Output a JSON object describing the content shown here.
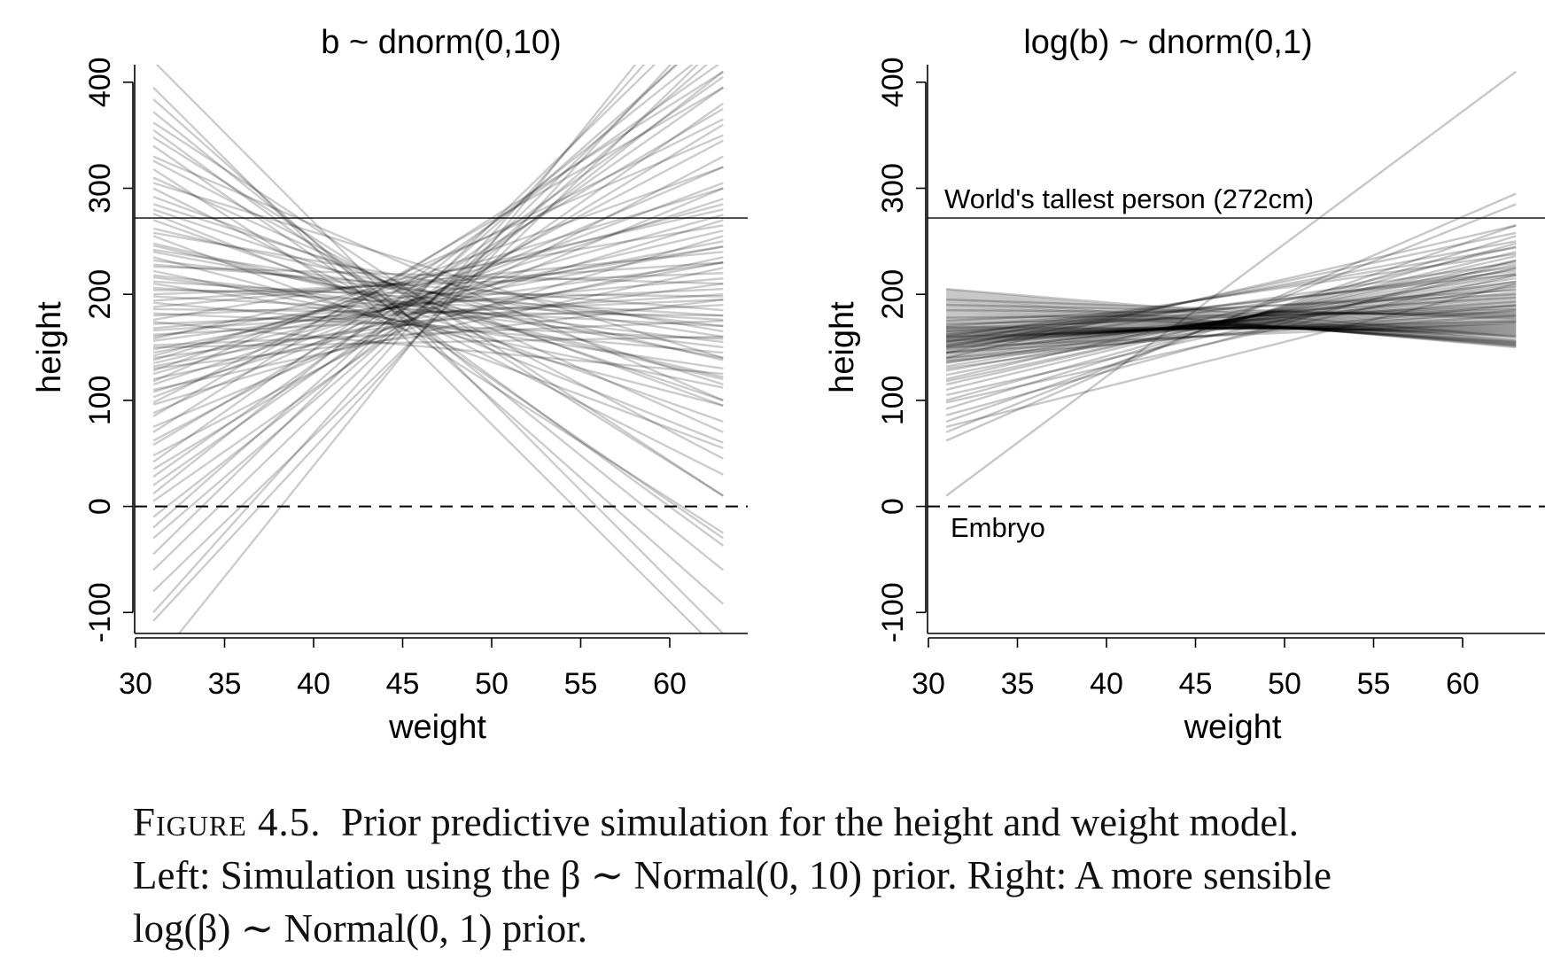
{
  "chart_data": [
    {
      "type": "line",
      "title": "b ~ dnorm(0,10)",
      "xlabel": "weight",
      "ylabel": "height",
      "xlim": [
        30,
        63
      ],
      "ylim": [
        -120,
        420
      ],
      "xticks": [
        "30",
        "35",
        "40",
        "45",
        "50",
        "55",
        "60"
      ],
      "yticks": [
        "-100",
        "0",
        "100",
        "200",
        "300",
        "400"
      ],
      "x": [
        31,
        63
      ],
      "series_color": "#000000",
      "series_opacity": 0.2,
      "series": [
        {
          "values": [
            420,
            -120
          ]
        },
        {
          "values": [
            384,
            -92
          ]
        },
        {
          "values": [
            355,
            -37
          ]
        },
        {
          "values": [
            340,
            -30
          ]
        },
        {
          "values": [
            330,
            100
          ]
        },
        {
          "values": [
            318,
            -25
          ]
        },
        {
          "values": [
            300,
            30
          ]
        },
        {
          "values": [
            285,
            115
          ]
        },
        {
          "values": [
            270,
            80
          ]
        },
        {
          "values": [
            262,
            138
          ]
        },
        {
          "values": [
            255,
            55
          ]
        },
        {
          "values": [
            248,
            122
          ]
        },
        {
          "values": [
            242,
            160
          ]
        },
        {
          "values": [
            235,
            95
          ]
        },
        {
          "values": [
            228,
            185
          ]
        },
        {
          "values": [
            222,
            112
          ]
        },
        {
          "values": [
            216,
            150
          ]
        },
        {
          "values": [
            210,
            130
          ]
        },
        {
          "values": [
            204,
            198
          ]
        },
        {
          "values": [
            198,
            170
          ]
        },
        {
          "values": [
            192,
            145
          ]
        },
        {
          "values": [
            186,
            180
          ]
        },
        {
          "values": [
            180,
            205
          ]
        },
        {
          "values": [
            174,
            125
          ]
        },
        {
          "values": [
            168,
            215
          ]
        },
        {
          "values": [
            162,
            190
          ]
        },
        {
          "values": [
            156,
            230
          ]
        },
        {
          "values": [
            150,
            160
          ]
        },
        {
          "values": [
            145,
            245
          ]
        },
        {
          "values": [
            140,
            210
          ]
        },
        {
          "values": [
            135,
            260
          ]
        },
        {
          "values": [
            130,
            195
          ]
        },
        {
          "values": [
            125,
            275
          ]
        },
        {
          "values": [
            120,
            235
          ]
        },
        {
          "values": [
            115,
            290
          ]
        },
        {
          "values": [
            110,
            225
          ]
        },
        {
          "values": [
            103,
            305
          ]
        },
        {
          "values": [
            96,
            255
          ]
        },
        {
          "values": [
            88,
            320
          ]
        },
        {
          "values": [
            75,
            300
          ]
        },
        {
          "values": [
            62,
            345
          ]
        },
        {
          "values": [
            48,
            330
          ]
        },
        {
          "values": [
            35,
            360
          ]
        },
        {
          "values": [
            20,
            395
          ]
        },
        {
          "values": [
            5,
            380
          ]
        },
        {
          "values": [
            -10,
            410
          ]
        },
        {
          "values": [
            -30,
            430
          ]
        },
        {
          "values": [
            -60,
            460
          ]
        },
        {
          "values": [
            -80,
            440
          ]
        },
        {
          "values": [
            -100,
            500
          ]
        },
        {
          "values": [
            -108,
            470
          ]
        },
        {
          "values": [
            -150,
            520
          ]
        },
        {
          "values": [
            395,
            -140
          ]
        },
        {
          "values": [
            372,
            -60
          ]
        },
        {
          "values": [
            362,
            10
          ]
        },
        {
          "values": [
            310,
            70
          ]
        },
        {
          "values": [
            292,
            95
          ]
        },
        {
          "values": [
            276,
            60
          ]
        },
        {
          "values": [
            240,
            140
          ]
        },
        {
          "values": [
            232,
            170
          ]
        },
        {
          "values": [
            212,
            180
          ]
        },
        {
          "values": [
            200,
            220
          ]
        },
        {
          "values": [
            188,
            240
          ]
        },
        {
          "values": [
            176,
            265
          ]
        },
        {
          "values": [
            166,
            200
          ]
        },
        {
          "values": [
            158,
            280
          ]
        },
        {
          "values": [
            148,
            250
          ]
        },
        {
          "values": [
            138,
            300
          ]
        },
        {
          "values": [
            128,
            320
          ]
        },
        {
          "values": [
            118,
            350
          ]
        },
        {
          "values": [
            108,
            270
          ]
        },
        {
          "values": [
            98,
            365
          ]
        },
        {
          "values": [
            85,
            395
          ]
        },
        {
          "values": [
            70,
            410
          ]
        },
        {
          "values": [
            58,
            375
          ]
        },
        {
          "values": [
            42,
            420
          ]
        },
        {
          "values": [
            28,
            405
          ]
        },
        {
          "values": [
            12,
            440
          ]
        },
        {
          "values": [
            -20,
            455
          ]
        },
        {
          "values": [
            -45,
            480
          ]
        },
        {
          "values": [
            348,
            10
          ]
        },
        {
          "values": [
            326,
            45
          ]
        },
        {
          "values": [
            305,
            140
          ]
        },
        {
          "values": [
            280,
            100
          ]
        },
        {
          "values": [
            258,
            165
          ]
        },
        {
          "values": [
            246,
            120
          ]
        },
        {
          "values": [
            226,
            210
          ]
        },
        {
          "values": [
            218,
            155
          ]
        },
        {
          "values": [
            206,
            176
          ]
        },
        {
          "values": [
            194,
            230
          ]
        },
        {
          "values": [
            182,
            158
          ]
        },
        {
          "values": [
            172,
            195
          ]
        },
        {
          "values": [
            160,
            245
          ]
        },
        {
          "values": [
            152,
            175
          ]
        },
        {
          "values": [
            142,
            285
          ]
        },
        {
          "values": [
            132,
            230
          ]
        }
      ]
    },
    {
      "type": "line",
      "title": "log(b) ~ dnorm(0,1)",
      "xlabel": "weight",
      "ylabel": "height",
      "xlim": [
        30,
        63
      ],
      "ylim": [
        -120,
        420
      ],
      "xticks": [
        "30",
        "35",
        "40",
        "45",
        "50",
        "55",
        "60"
      ],
      "yticks": [
        "-100",
        "0",
        "100",
        "200",
        "300",
        "400"
      ],
      "x": [
        31,
        63
      ],
      "series_color": "#000000",
      "series_opacity": 0.22,
      "series": [
        {
          "values": [
            10,
            410
          ]
        },
        {
          "values": [
            62,
            295
          ]
        },
        {
          "values": [
            70,
            285
          ]
        },
        {
          "values": [
            80,
            265
          ]
        },
        {
          "values": [
            92,
            255
          ]
        },
        {
          "values": [
            100,
            248
          ]
        },
        {
          "values": [
            110,
            240
          ]
        },
        {
          "values": [
            118,
            232
          ]
        },
        {
          "values": [
            124,
            228
          ]
        },
        {
          "values": [
            128,
            224
          ]
        },
        {
          "values": [
            132,
            220
          ]
        },
        {
          "values": [
            135,
            218
          ]
        },
        {
          "values": [
            138,
            215
          ]
        },
        {
          "values": [
            140,
            212
          ]
        },
        {
          "values": [
            142,
            210
          ]
        },
        {
          "values": [
            144,
            208
          ]
        },
        {
          "values": [
            145,
            205
          ]
        },
        {
          "values": [
            146,
            202
          ]
        },
        {
          "values": [
            148,
            200
          ]
        },
        {
          "values": [
            150,
            198
          ]
        },
        {
          "values": [
            151,
            196
          ]
        },
        {
          "values": [
            152,
            194
          ]
        },
        {
          "values": [
            153,
            192
          ]
        },
        {
          "values": [
            154,
            190
          ]
        },
        {
          "values": [
            155,
            188
          ]
        },
        {
          "values": [
            156,
            186
          ]
        },
        {
          "values": [
            157,
            184
          ]
        },
        {
          "values": [
            158,
            182
          ]
        },
        {
          "values": [
            159,
            180
          ]
        },
        {
          "values": [
            160,
            178
          ]
        },
        {
          "values": [
            161,
            176
          ]
        },
        {
          "values": [
            162,
            175
          ]
        },
        {
          "values": [
            163,
            174
          ]
        },
        {
          "values": [
            164,
            172
          ]
        },
        {
          "values": [
            165,
            171
          ]
        },
        {
          "values": [
            166,
            170
          ]
        },
        {
          "values": [
            167,
            169
          ]
        },
        {
          "values": [
            168,
            168
          ]
        },
        {
          "values": [
            169,
            167
          ]
        },
        {
          "values": [
            170,
            166
          ]
        },
        {
          "values": [
            172,
            165
          ]
        },
        {
          "values": [
            174,
            164
          ]
        },
        {
          "values": [
            176,
            163
          ]
        },
        {
          "values": [
            178,
            162
          ]
        },
        {
          "values": [
            180,
            161
          ]
        },
        {
          "values": [
            182,
            160
          ]
        },
        {
          "values": [
            184,
            158
          ]
        },
        {
          "values": [
            186,
            156
          ]
        },
        {
          "values": [
            188,
            155
          ]
        },
        {
          "values": [
            190,
            154
          ]
        },
        {
          "values": [
            192,
            153
          ]
        },
        {
          "values": [
            194,
            152
          ]
        },
        {
          "values": [
            196,
            151
          ]
        },
        {
          "values": [
            198,
            150
          ]
        },
        {
          "values": [
            200,
            152
          ]
        },
        {
          "values": [
            202,
            154
          ]
        },
        {
          "values": [
            204,
            156
          ]
        },
        {
          "values": [
            205,
            160
          ]
        },
        {
          "values": [
            140,
            265
          ]
        },
        {
          "values": [
            145,
            258
          ]
        },
        {
          "values": [
            150,
            250
          ]
        },
        {
          "values": [
            155,
            244
          ]
        },
        {
          "values": [
            160,
            238
          ]
        },
        {
          "values": [
            152,
            230
          ]
        },
        {
          "values": [
            148,
            226
          ]
        },
        {
          "values": [
            158,
            222
          ]
        },
        {
          "values": [
            162,
            219
          ]
        },
        {
          "values": [
            136,
            212
          ]
        },
        {
          "values": [
            130,
            207
          ]
        },
        {
          "values": [
            170,
            204
          ]
        },
        {
          "values": [
            175,
            200
          ]
        },
        {
          "values": [
            165,
            197
          ]
        },
        {
          "values": [
            156,
            193
          ]
        },
        {
          "values": [
            168,
            189
          ]
        },
        {
          "values": [
            172,
            186
          ]
        },
        {
          "values": [
            178,
            183
          ]
        },
        {
          "values": [
            185,
            181
          ]
        },
        {
          "values": [
            190,
            179
          ]
        },
        {
          "values": [
            195,
            177
          ]
        },
        {
          "values": [
            160,
            174
          ]
        },
        {
          "values": [
            150,
            173
          ]
        },
        {
          "values": [
            145,
            180
          ]
        },
        {
          "values": [
            140,
            185
          ]
        },
        {
          "values": [
            137,
            190
          ]
        },
        {
          "values": [
            120,
            245
          ]
        },
        {
          "values": [
            115,
            236
          ]
        },
        {
          "values": [
            105,
            225
          ]
        },
        {
          "values": [
            98,
            218
          ]
        },
        {
          "values": [
            86,
            232
          ]
        },
        {
          "values": [
            75,
            210
          ]
        }
      ]
    }
  ],
  "annotations": {
    "tallest_label": "World's tallest person (272cm)",
    "tallest_value": 272,
    "embryo_label": "Embryo",
    "embryo_value": 0
  },
  "caption": {
    "label": "Figure 4.5.",
    "line1": "Prior predictive simulation for the height and weight model.",
    "line2": "Left: Simulation using the β ∼ Normal(0, 10) prior. Right: A more sensible",
    "line3": "log(β) ∼ Normal(0, 1) prior."
  }
}
